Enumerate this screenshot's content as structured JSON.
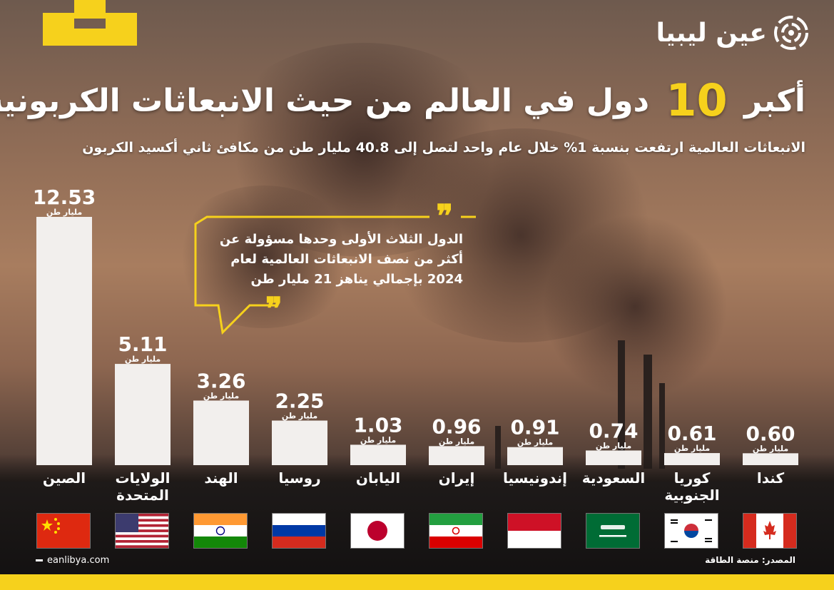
{
  "header": {
    "title_before": "أكبر",
    "title_number": "10",
    "title_after": "دول في العالم من حيث الانبعاثات الكربونية",
    "subtitle": "الانبعاثات العالمية ارتفعت بنسبة 1% خلال عام واحد لتصل إلى 40.8 مليار طن من مكافئ ثاني أكسيد الكربون",
    "brand": "عين ليبيا"
  },
  "callout": {
    "lines": [
      "الدول الثلاث الأولى وحدها مسؤولة عن",
      "أكثر من نصف الانبعاثات العالمية لعام",
      "2024 بإجمالي يناهز 21 مليار طن"
    ]
  },
  "chart_data": {
    "type": "bar",
    "categories": [
      "الصين",
      "الولايات المتحدة",
      "الهند",
      "روسيا",
      "اليابان",
      "إيران",
      "إندونيسيا",
      "السعودية",
      "كوريا الجنوبية",
      "كندا"
    ],
    "values": [
      12.53,
      5.11,
      3.26,
      2.25,
      1.03,
      0.96,
      0.91,
      0.74,
      0.61,
      0.6
    ],
    "value_labels": [
      "12.53",
      "5.11",
      "3.26",
      "2.25",
      "1.03",
      "0.96",
      "0.91",
      "0.74",
      "0.61",
      "0.60"
    ],
    "unit": "مليار طن",
    "ylim": [
      0,
      12.53
    ],
    "bar_color": "#f2efed"
  },
  "footer": {
    "source": "المصدر: منصة الطاقة",
    "site": "eanlibya.com"
  },
  "colors": {
    "accent": "#f6d11c"
  }
}
